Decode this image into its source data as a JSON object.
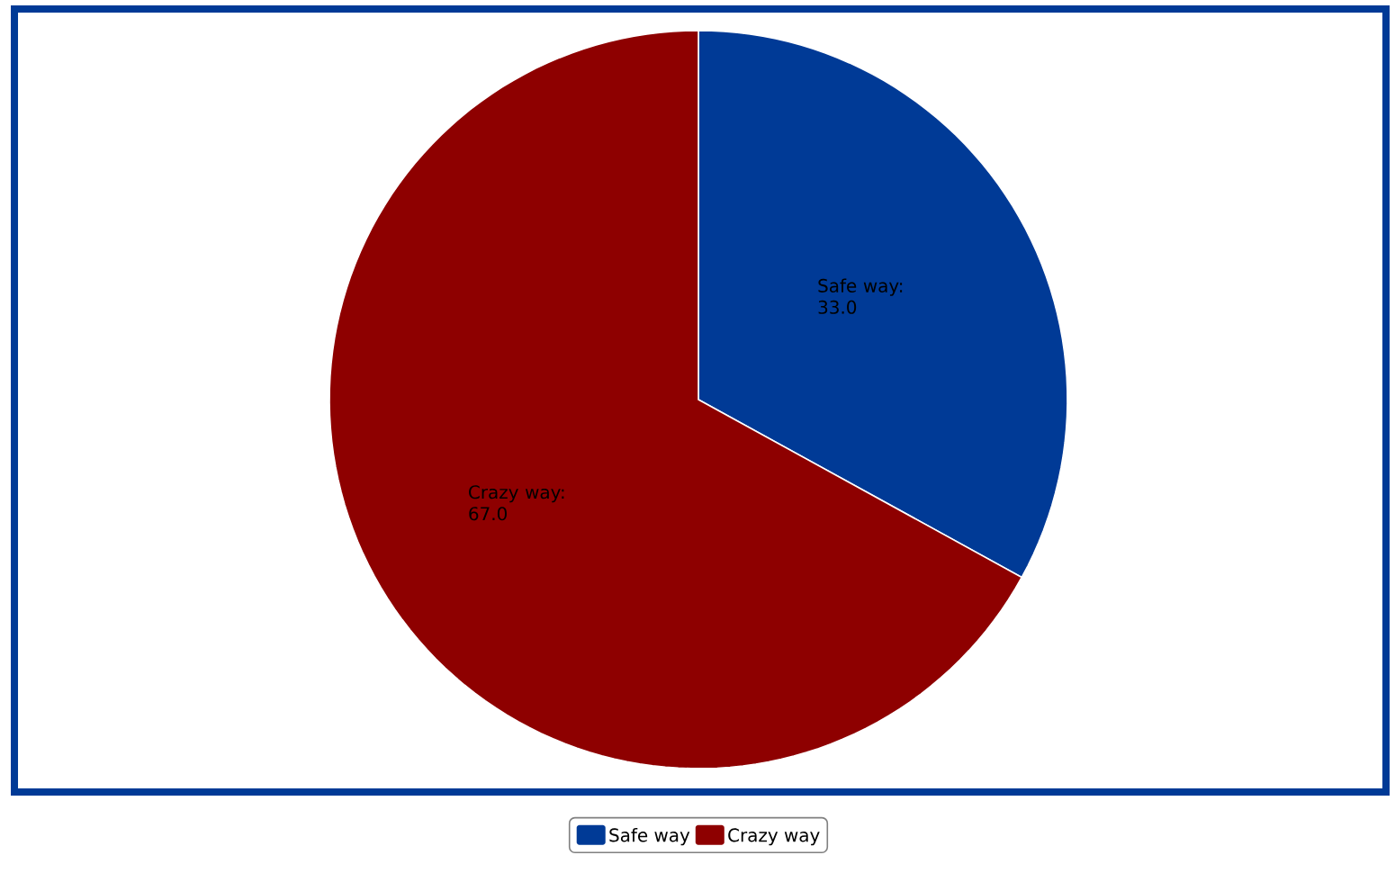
{
  "chart_data": {
    "type": "pie",
    "categories": [
      "Safe way",
      "Crazy way"
    ],
    "values": [
      33.0,
      67.0
    ],
    "value_labels": [
      "Safe way: 33.0",
      "Crazy way: 67.0"
    ],
    "colors": [
      "#003a96",
      "#8e0000"
    ],
    "legend": "bottom"
  }
}
